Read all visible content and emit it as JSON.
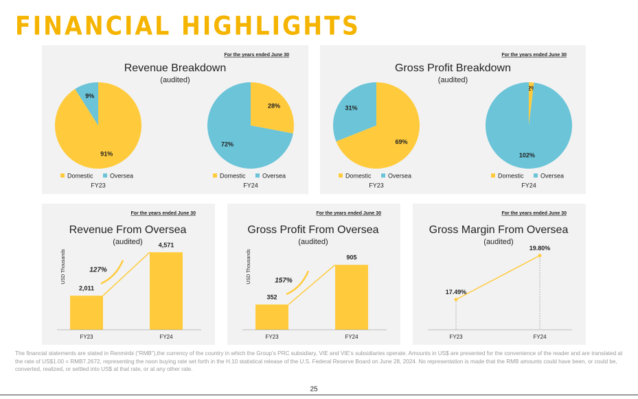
{
  "header": {
    "title": "FINANCIAL HIGHLIGHTS"
  },
  "chart_data": [
    {
      "type": "pie",
      "note": "For the years ended June 30",
      "title": "Revenue Breakdown",
      "subtitle": "(audited)",
      "categories": [
        "Domestic",
        "Oversea"
      ],
      "colors": [
        "#FFCB3D",
        "#6BC4D8"
      ],
      "pies": [
        {
          "label": "FY23",
          "values": [
            91,
            9
          ],
          "value_labels": [
            "91%",
            "9%"
          ]
        },
        {
          "label": "FY24",
          "values": [
            28,
            72
          ],
          "value_labels": [
            "28%",
            "72%"
          ]
        }
      ]
    },
    {
      "type": "pie",
      "note": "For the years ended June 30",
      "title": "Gross Profit Breakdown",
      "subtitle": "(audited)",
      "categories": [
        "Domestic",
        "Oversea"
      ],
      "colors": [
        "#FFCB3D",
        "#6BC4D8"
      ],
      "pies": [
        {
          "label": "FY23",
          "values": [
            69,
            31
          ],
          "value_labels": [
            "69%",
            "31%"
          ]
        },
        {
          "label": "FY24",
          "values": [
            -2,
            102
          ],
          "value_labels": [
            "-2%",
            "102%"
          ]
        }
      ]
    },
    {
      "type": "bar",
      "note": "For the years ended June 30",
      "title": "Revenue From Oversea",
      "subtitle": "(audited)",
      "y_label": "USD Thousands",
      "categories": [
        "FY23",
        "FY24"
      ],
      "values": [
        2011,
        4571
      ],
      "value_labels": [
        "2,011",
        "4,571"
      ],
      "color": "#FFCB3D",
      "ylim": [
        0,
        5500
      ],
      "annotation": "127%"
    },
    {
      "type": "bar",
      "note": "For the years ended June 30",
      "title": "Gross Profit From Oversea",
      "subtitle": "(audited)",
      "y_label": "USD Thousands",
      "categories": [
        "FY23",
        "FY24"
      ],
      "values": [
        352,
        905
      ],
      "value_labels": [
        "352",
        "905"
      ],
      "color": "#FFCB3D",
      "ylim": [
        0,
        1300
      ],
      "annotation": "157%"
    },
    {
      "type": "line",
      "note": "For the years ended June 30",
      "title": "Gross Margin From Oversea",
      "subtitle": "(audited)",
      "categories": [
        "FY23",
        "FY24"
      ],
      "values": [
        17.49,
        19.8
      ],
      "value_labels": [
        "17.49%",
        "19.80%"
      ],
      "color": "#FFCB3D",
      "ylim": [
        15.9,
        20.8
      ]
    }
  ],
  "footnote": "The financial statements are stated in Renminbi (“RMB”),the currency of the country in which the Group’s PRC subsidiary, VIE and VIE’s subsidiaries operate. Amounts in US$ are presented for the convenience of the reader and are translated at the rate of US$1.00 = RMB7.2672, representing the noon buying rate set forth in the H.10 statistical release of the U.S. Federal Reserve Board on June 28, 2024. No representation is made that the RMB amounts could have been, or could be, converted, realized, or settled into US$ at that rate, or at any other rate.",
  "page_number": "25"
}
